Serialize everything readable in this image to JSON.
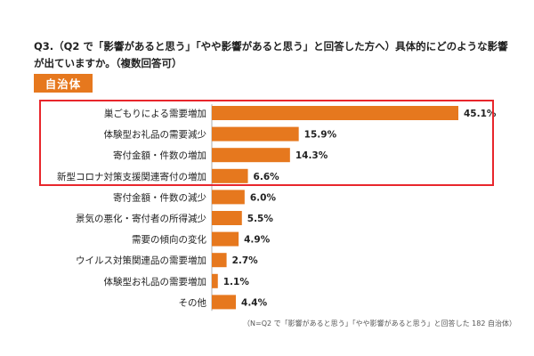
{
  "question": "Q3.（Q2 で「影響があると思う」「やや影響があると思う」と回答した方へ）具体的にどのような影響が出ていますか。（複数回答可）",
  "badge": "自治体",
  "note": "（N=Q2 で「影響があると思う」「やや影響があると思う」と回答した 182 自治体）",
  "colors": {
    "bar": "#e6781e",
    "badge": "#e6781e",
    "highlight": "#e8262c"
  },
  "chart_data": {
    "type": "bar",
    "orientation": "horizontal",
    "categories": [
      "巣ごもりによる需要増加",
      "体験型お礼品の需要減少",
      "寄付金額・件数の増加",
      "新型コロナ対策支援関連寄付の増加",
      "寄付金額・件数の減少",
      "景気の悪化・寄付者の所得減少",
      "需要の傾向の変化",
      "ウイルス対策関連品の需要増加",
      "体験型お礼品の需要増加",
      "その他"
    ],
    "values": [
      45.1,
      15.9,
      14.3,
      6.6,
      6.0,
      5.5,
      4.9,
      2.7,
      1.1,
      4.4
    ],
    "value_labels": [
      "45.1%",
      "15.9%",
      "14.3%",
      "6.6%",
      "6.0%",
      "5.5%",
      "4.9%",
      "2.7%",
      "1.1%",
      "4.4%"
    ],
    "unit": "%",
    "xlim": [
      0,
      50
    ],
    "highlighted_categories": [
      0,
      1,
      2,
      3
    ],
    "grid": false
  }
}
